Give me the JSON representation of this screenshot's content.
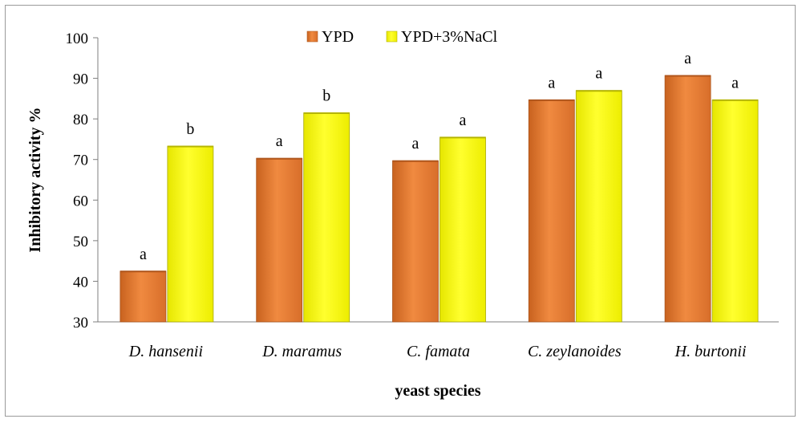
{
  "chart_data": {
    "type": "bar",
    "title": "",
    "xlabel": "yeast species",
    "ylabel": "Inhibitory activity %",
    "ylim": [
      30,
      100
    ],
    "yticks": [
      30,
      40,
      50,
      60,
      70,
      80,
      90,
      100
    ],
    "categories": [
      "D. hansenii",
      "D. maramus",
      "C. famata",
      "C. zeylanoides",
      "H. burtonii"
    ],
    "series": [
      {
        "name": "YPD",
        "color": "#E8803A",
        "values": [
          42.5,
          70.3,
          69.7,
          84.7,
          90.7
        ],
        "labels": [
          "a",
          "a",
          "a",
          "a",
          "a"
        ]
      },
      {
        "name": "YPD+3%NaCl",
        "color": "#FFFF1A",
        "values": [
          73.3,
          81.5,
          75.5,
          87.0,
          84.7
        ],
        "labels": [
          "b",
          "b",
          "a",
          "a",
          "a"
        ]
      }
    ],
    "legend": "top-center",
    "grid": false
  }
}
